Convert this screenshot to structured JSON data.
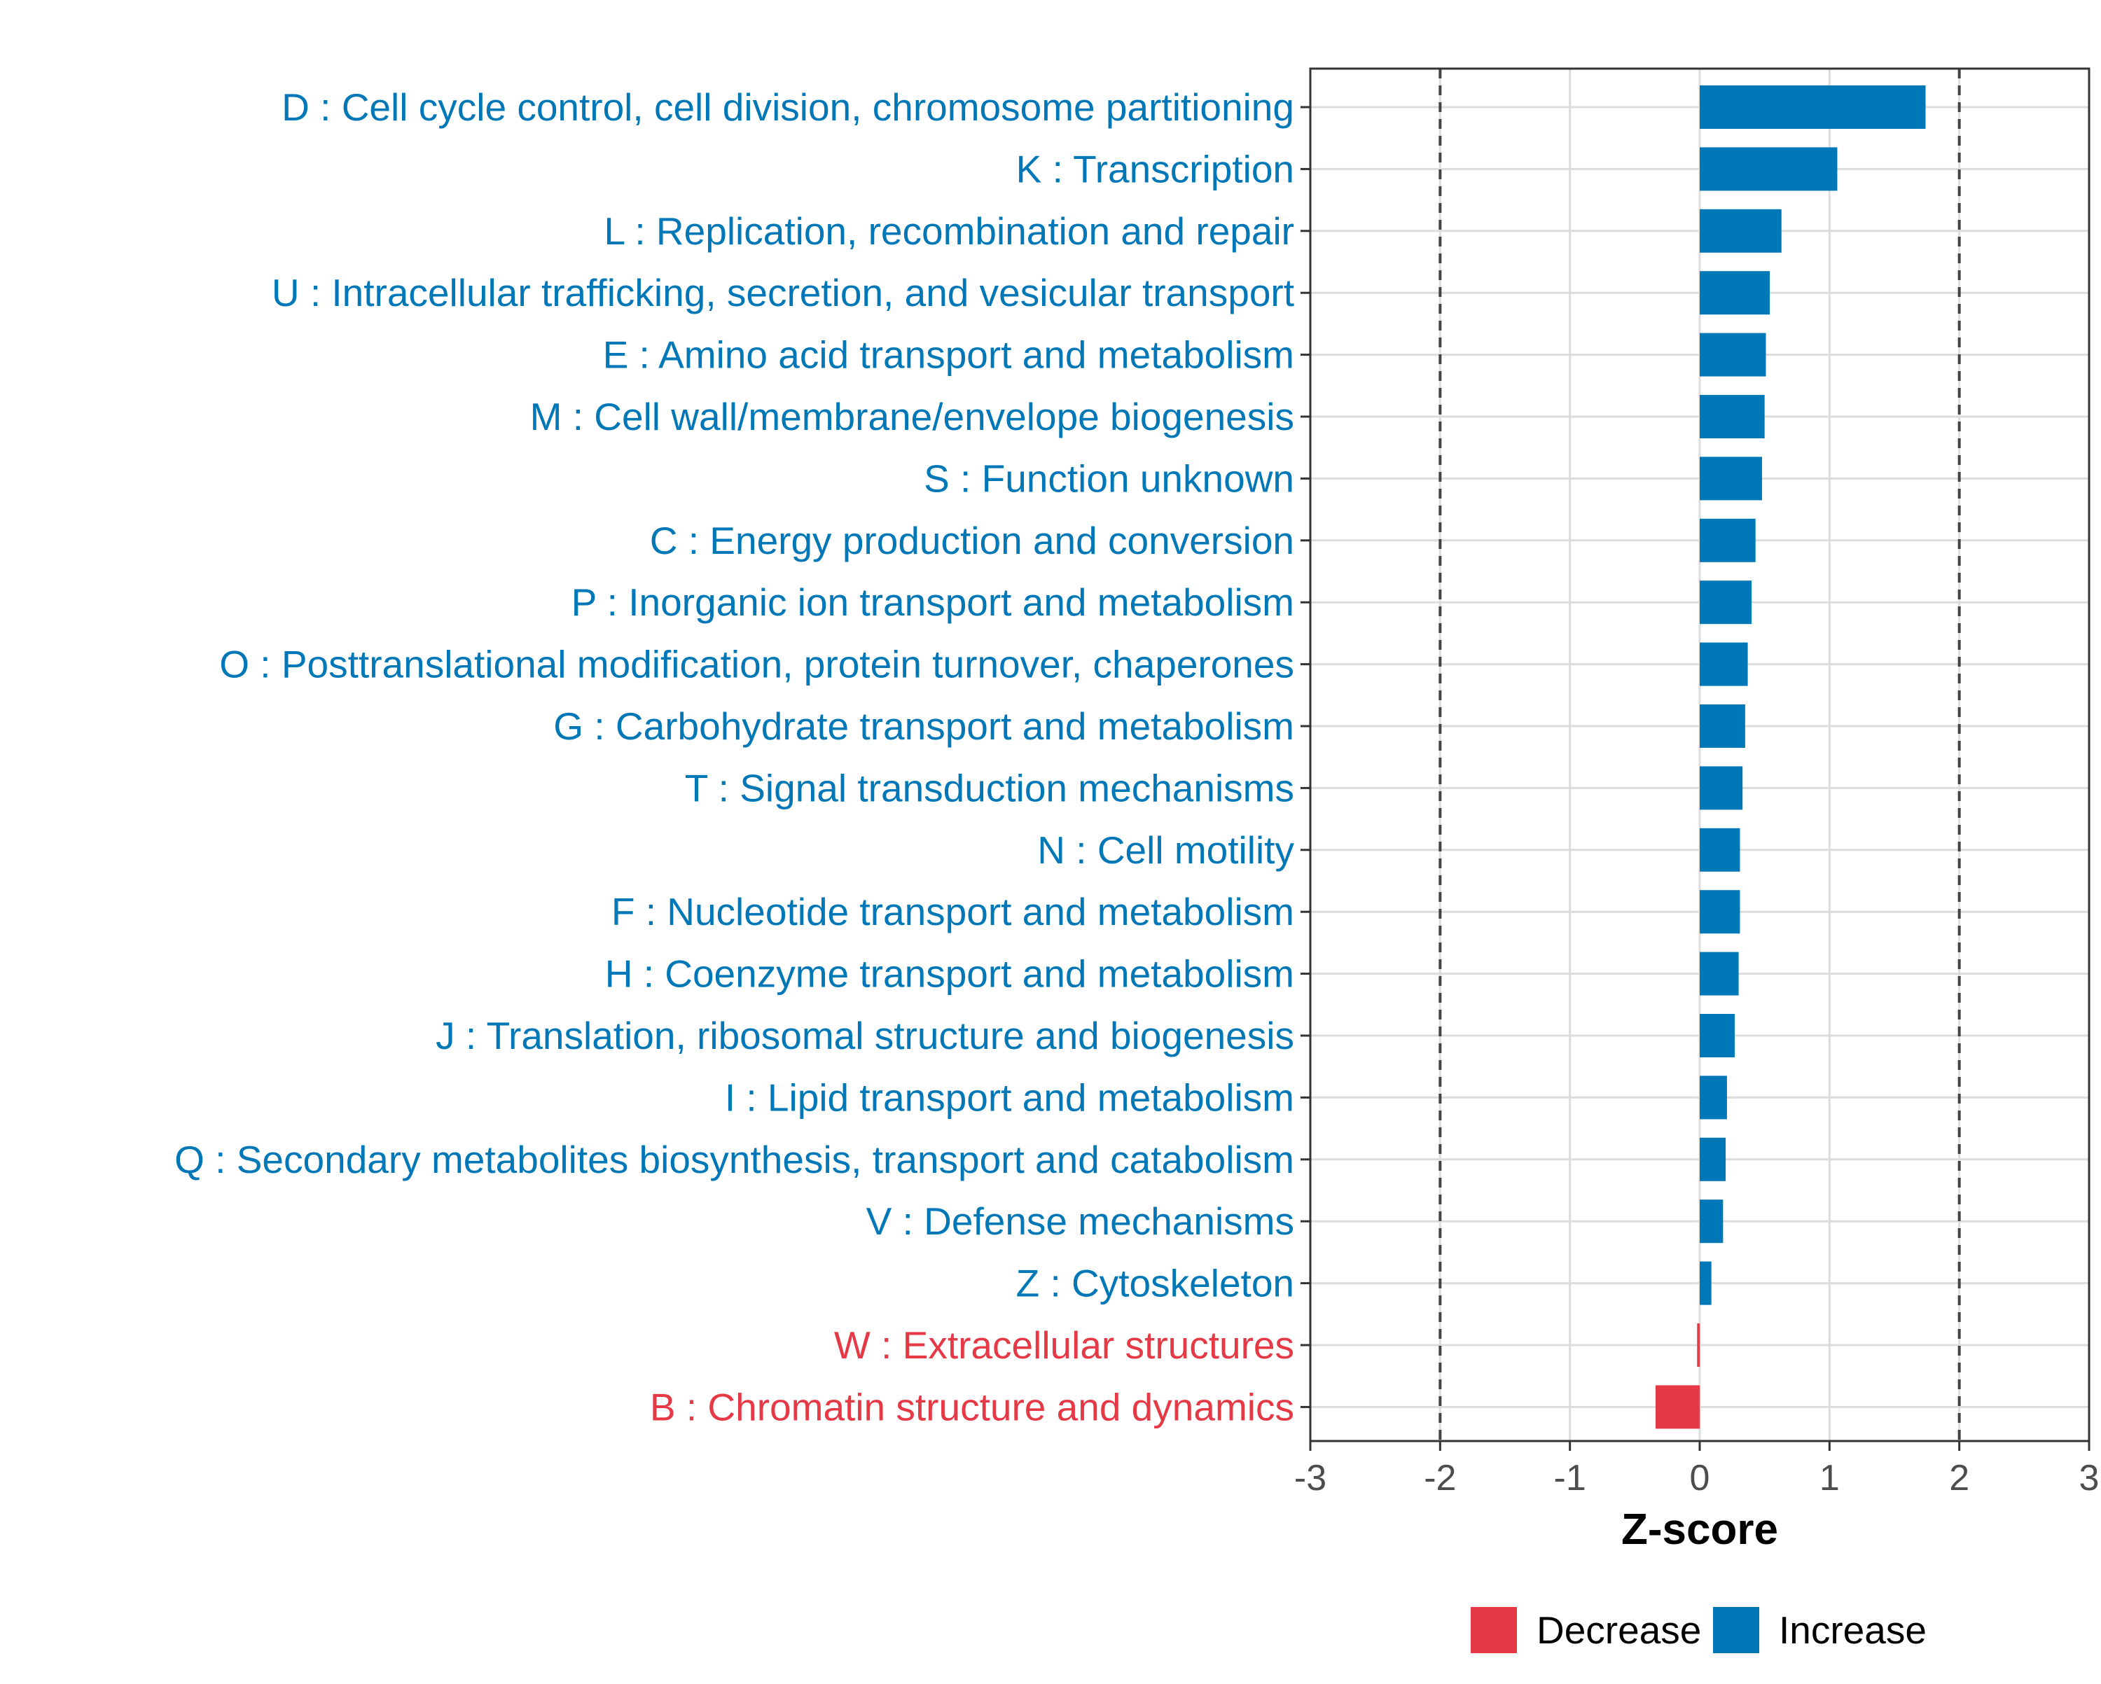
{
  "chart_data": {
    "type": "bar",
    "orientation": "horizontal",
    "xlabel": "Z-score",
    "ylabel": "",
    "xlim": [
      -3,
      3
    ],
    "xticks": [
      -3,
      -2,
      -1,
      0,
      1,
      2,
      3
    ],
    "xtick_labels": [
      "-3",
      "-2",
      "-1",
      "0",
      "1",
      "2",
      "3"
    ],
    "reference_lines": [
      -2,
      2
    ],
    "grid": true,
    "legend_position": "bottom",
    "colors": {
      "Decrease": "#E63946",
      "Increase": "#0077B6"
    },
    "legend": [
      {
        "label": "Decrease",
        "color": "#E63946"
      },
      {
        "label": "Increase",
        "color": "#0077B6"
      }
    ],
    "categories": [
      "D : Cell cycle control, cell division, chromosome partitioning",
      "K : Transcription",
      "L : Replication, recombination and repair",
      "U : Intracellular trafficking, secretion, and vesicular transport",
      "E : Amino acid transport and metabolism",
      "M : Cell wall/membrane/envelope biogenesis",
      "S : Function unknown",
      "C : Energy production and conversion",
      "P : Inorganic ion transport and metabolism",
      "O : Posttranslational modification, protein turnover, chaperones",
      "G : Carbohydrate transport and metabolism",
      "T : Signal transduction mechanisms",
      "N : Cell motility",
      "F : Nucleotide transport and metabolism",
      "H : Coenzyme transport and metabolism",
      "J : Translation, ribosomal structure and biogenesis",
      "I : Lipid transport and metabolism",
      "Q : Secondary metabolites biosynthesis, transport and catabolism",
      "V : Defense mechanisms",
      "Z : Cytoskeleton",
      "W : Extracellular structures",
      "B : Chromatin structure and dynamics"
    ],
    "values": [
      1.74,
      1.06,
      0.63,
      0.54,
      0.51,
      0.5,
      0.48,
      0.43,
      0.4,
      0.37,
      0.35,
      0.33,
      0.31,
      0.31,
      0.3,
      0.27,
      0.21,
      0.2,
      0.18,
      0.09,
      -0.02,
      -0.34
    ],
    "groups": [
      "Increase",
      "Increase",
      "Increase",
      "Increase",
      "Increase",
      "Increase",
      "Increase",
      "Increase",
      "Increase",
      "Increase",
      "Increase",
      "Increase",
      "Increase",
      "Increase",
      "Increase",
      "Increase",
      "Increase",
      "Increase",
      "Increase",
      "Increase",
      "Decrease",
      "Decrease"
    ]
  }
}
